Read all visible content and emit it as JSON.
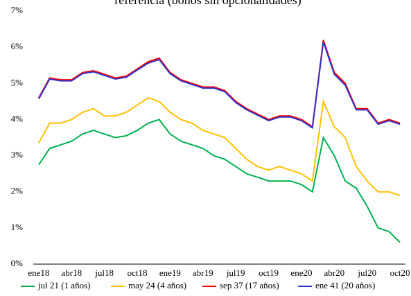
{
  "chart_data": {
    "type": "line",
    "title": "referencia (bonos sin opcionalidades)",
    "categories": [
      "ene18",
      null,
      null,
      "abr18",
      null,
      null,
      "jul18",
      null,
      null,
      "oct18",
      null,
      null,
      "ene19",
      null,
      null,
      "abr19",
      null,
      null,
      "jul19",
      null,
      null,
      "oct19",
      null,
      null,
      "ene20",
      null,
      null,
      "abr20",
      null,
      null,
      "jul20",
      null,
      null,
      "oct20"
    ],
    "series": [
      {
        "name": "jul 21 (1 años)",
        "color": "#00b050",
        "values": [
          2.75,
          3.2,
          3.3,
          3.4,
          3.6,
          3.7,
          3.6,
          3.5,
          3.55,
          3.7,
          3.9,
          4.0,
          3.6,
          3.4,
          3.3,
          3.2,
          3.0,
          2.9,
          2.7,
          2.5,
          2.4,
          2.3,
          2.3,
          2.3,
          2.2,
          2.0,
          3.5,
          3.0,
          2.3,
          2.1,
          1.6,
          1.0,
          0.9,
          0.6
        ]
      },
      {
        "name": "may 24 (4 años)",
        "color": "#ffc000",
        "values": [
          3.35,
          3.9,
          3.9,
          4.0,
          4.2,
          4.3,
          4.1,
          4.1,
          4.2,
          4.4,
          4.6,
          4.5,
          4.2,
          4.0,
          3.9,
          3.7,
          3.6,
          3.5,
          3.2,
          2.9,
          2.7,
          2.6,
          2.7,
          2.6,
          2.5,
          2.3,
          4.5,
          3.8,
          3.5,
          2.7,
          2.3,
          2.0,
          2.0,
          1.9
        ]
      },
      {
        "name": "sep 37 (17 años)",
        "color": "#ff0000",
        "values": [
          4.6,
          5.15,
          5.1,
          5.1,
          5.3,
          5.35,
          5.25,
          5.15,
          5.2,
          5.4,
          5.6,
          5.7,
          5.3,
          5.1,
          5.0,
          4.9,
          4.9,
          4.8,
          4.5,
          4.3,
          4.15,
          4.0,
          4.1,
          4.1,
          4.0,
          3.8,
          6.2,
          5.3,
          5.0,
          4.3,
          4.3,
          3.9,
          4.0,
          3.9
        ]
      },
      {
        "name": "ene 41 (20 años)",
        "color": "#3333cc",
        "values": [
          4.57,
          5.12,
          5.07,
          5.07,
          5.27,
          5.32,
          5.22,
          5.12,
          5.17,
          5.37,
          5.56,
          5.66,
          5.27,
          5.07,
          4.97,
          4.87,
          4.87,
          4.77,
          4.47,
          4.27,
          4.12,
          3.97,
          4.07,
          4.07,
          3.97,
          3.77,
          6.15,
          5.25,
          4.95,
          4.27,
          4.27,
          3.87,
          3.97,
          3.87
        ]
      }
    ],
    "ylim": [
      0,
      7
    ],
    "yticks": [
      {
        "value": 0,
        "label": "0%"
      },
      {
        "value": 1,
        "label": "1%"
      },
      {
        "value": 2,
        "label": "2%"
      },
      {
        "value": 3,
        "label": "3%"
      },
      {
        "value": 4,
        "label": "4%"
      },
      {
        "value": 5,
        "label": "5%"
      },
      {
        "value": 6,
        "label": "6%"
      },
      {
        "value": 7,
        "label": "7%"
      }
    ],
    "grid": false,
    "legend": "bottom"
  }
}
